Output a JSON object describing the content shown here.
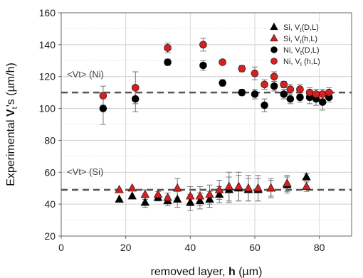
{
  "chart_data": {
    "type": "scatter",
    "xlabel_prefix": "removed layer, ",
    "xlabel_var": "h",
    "xlabel_suffix": " (µm)",
    "ylabel_prefix": "Experimental ",
    "ylabel_var": "V",
    "ylabel_sub": "t",
    "ylabel_suffix": "'s (µm/h)",
    "xlim": [
      0,
      90
    ],
    "ylim": [
      20,
      160
    ],
    "xticks": [
      0,
      20,
      40,
      60,
      80
    ],
    "yticks": [
      20,
      40,
      60,
      80,
      100,
      120,
      140,
      160
    ],
    "grid": true,
    "legend_position": "top-right",
    "reference_lines": [
      {
        "label": "<Vt> (Ni)",
        "y": 110
      },
      {
        "label": "<Vt> (Si)",
        "y": 49
      }
    ],
    "legend": [
      {
        "prefix": "Si, V",
        "sub": "t",
        "suffix": "(D,L)",
        "marker": "triangle",
        "color": "#000000"
      },
      {
        "prefix": "Si, V",
        "sub": "t",
        "suffix": "(h,L)",
        "marker": "triangle",
        "color": "#d32020"
      },
      {
        "prefix": "Ni, V",
        "sub": "t",
        "suffix": "(D,L)",
        "marker": "circle",
        "color": "#000000"
      },
      {
        "prefix": "Ni, V",
        "sub": "t",
        "suffix": " (h,L)",
        "marker": "circle",
        "color": "#d32020"
      }
    ],
    "series": [
      {
        "marker": "triangle",
        "color": "#000000",
        "points": [
          {
            "x": 18,
            "y": 43,
            "err": 0
          },
          {
            "x": 22,
            "y": 45,
            "err": 0
          },
          {
            "x": 26,
            "y": 41,
            "err": 3
          },
          {
            "x": 30,
            "y": 44,
            "err": 2
          },
          {
            "x": 33,
            "y": 42,
            "err": 3
          },
          {
            "x": 36,
            "y": 43,
            "err": 5
          },
          {
            "x": 40,
            "y": 41,
            "err": 5
          },
          {
            "x": 43,
            "y": 42,
            "err": 5
          },
          {
            "x": 46,
            "y": 43,
            "err": 5
          },
          {
            "x": 49,
            "y": 46,
            "err": 5
          },
          {
            "x": 52,
            "y": 49,
            "err": 8
          },
          {
            "x": 55,
            "y": 50,
            "err": 8
          },
          {
            "x": 58,
            "y": 49,
            "err": 7
          },
          {
            "x": 61,
            "y": 49,
            "err": 7
          },
          {
            "x": 65,
            "y": 50,
            "err": 5
          },
          {
            "x": 70,
            "y": 52,
            "err": 5
          },
          {
            "x": 76,
            "y": 57,
            "err": 2
          }
        ]
      },
      {
        "marker": "triangle",
        "color": "#d32020",
        "points": [
          {
            "x": 18,
            "y": 49,
            "err": 0
          },
          {
            "x": 22,
            "y": 50,
            "err": 0
          },
          {
            "x": 26,
            "y": 46,
            "err": 3
          },
          {
            "x": 30,
            "y": 46,
            "err": 2
          },
          {
            "x": 33,
            "y": 44,
            "err": 3
          },
          {
            "x": 36,
            "y": 50,
            "err": 6
          },
          {
            "x": 40,
            "y": 45,
            "err": 6
          },
          {
            "x": 43,
            "y": 45,
            "err": 6
          },
          {
            "x": 46,
            "y": 46,
            "err": 6
          },
          {
            "x": 49,
            "y": 49,
            "err": 6
          },
          {
            "x": 52,
            "y": 51,
            "err": 9
          },
          {
            "x": 55,
            "y": 51,
            "err": 9
          },
          {
            "x": 58,
            "y": 50,
            "err": 8
          },
          {
            "x": 61,
            "y": 50,
            "err": 8
          },
          {
            "x": 65,
            "y": 50,
            "err": 6
          },
          {
            "x": 70,
            "y": 53,
            "err": 5
          },
          {
            "x": 76,
            "y": 51,
            "err": 3
          }
        ]
      },
      {
        "marker": "circle",
        "color": "#000000",
        "points": [
          {
            "x": 13,
            "y": 100,
            "err": 10
          },
          {
            "x": 23,
            "y": 106,
            "err": 8
          },
          {
            "x": 33,
            "y": 129,
            "err": 2
          },
          {
            "x": 44,
            "y": 127,
            "err": 3
          },
          {
            "x": 50,
            "y": 116,
            "err": 2
          },
          {
            "x": 56,
            "y": 110,
            "err": 2
          },
          {
            "x": 60,
            "y": 109,
            "err": 3
          },
          {
            "x": 63,
            "y": 102,
            "err": 4
          },
          {
            "x": 66,
            "y": 114,
            "err": 3
          },
          {
            "x": 69,
            "y": 109,
            "err": 3
          },
          {
            "x": 71,
            "y": 106,
            "err": 3
          },
          {
            "x": 74,
            "y": 107,
            "err": 3
          },
          {
            "x": 77,
            "y": 107,
            "err": 4
          },
          {
            "x": 79,
            "y": 106,
            "err": 4
          },
          {
            "x": 81,
            "y": 104,
            "err": 5
          },
          {
            "x": 83,
            "y": 107,
            "err": 3
          }
        ]
      },
      {
        "marker": "circle",
        "color": "#d32020",
        "points": [
          {
            "x": 13,
            "y": 108,
            "err": 6
          },
          {
            "x": 23,
            "y": 113,
            "err": 10
          },
          {
            "x": 33,
            "y": 138,
            "err": 3
          },
          {
            "x": 44,
            "y": 140,
            "err": 4
          },
          {
            "x": 50,
            "y": 129,
            "err": 1
          },
          {
            "x": 56,
            "y": 125,
            "err": 2
          },
          {
            "x": 60,
            "y": 122,
            "err": 4
          },
          {
            "x": 63,
            "y": 115,
            "err": 3
          },
          {
            "x": 66,
            "y": 120,
            "err": 3
          },
          {
            "x": 69,
            "y": 115,
            "err": 2
          },
          {
            "x": 71,
            "y": 112,
            "err": 3
          },
          {
            "x": 74,
            "y": 112,
            "err": 3
          },
          {
            "x": 77,
            "y": 110,
            "err": 3
          },
          {
            "x": 79,
            "y": 109,
            "err": 3
          },
          {
            "x": 81,
            "y": 109,
            "err": 3
          },
          {
            "x": 83,
            "y": 110,
            "err": 3
          }
        ]
      }
    ]
  }
}
